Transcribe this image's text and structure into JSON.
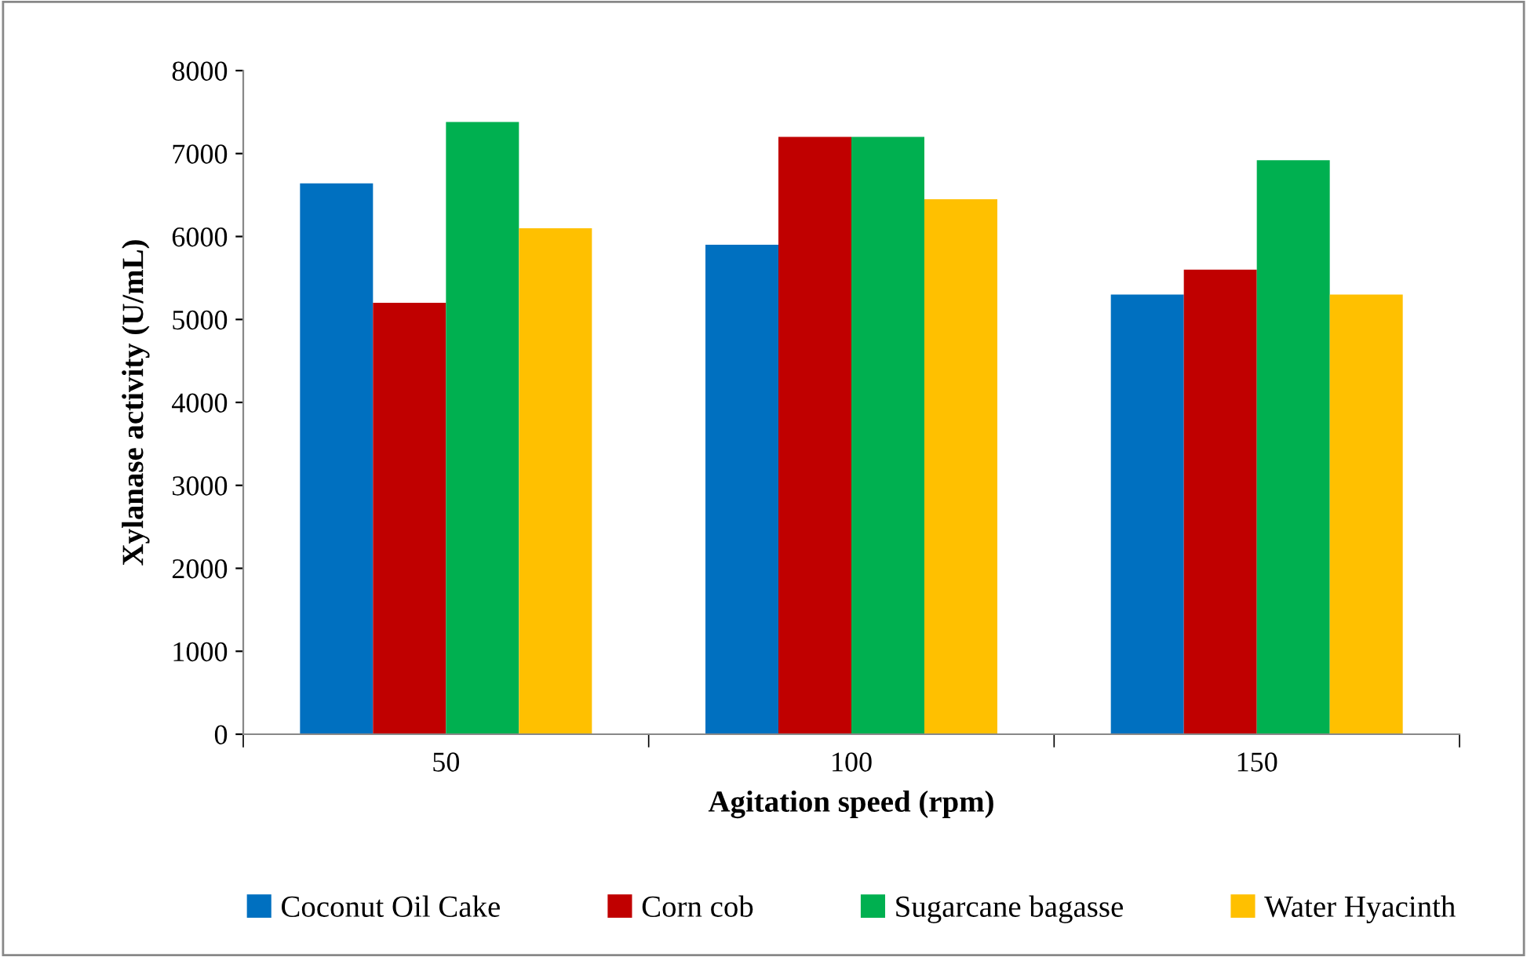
{
  "chart_data": {
    "type": "bar",
    "xlabel": "Agitation speed (rpm)",
    "ylabel": "Xylanase activity (U/mL)",
    "categories": [
      "50",
      "100",
      "150"
    ],
    "series": [
      {
        "name": "Coconut Oil Cake",
        "color": "#0070c0",
        "values": [
          6640,
          5900,
          5300
        ]
      },
      {
        "name": "Corn cob",
        "color": "#c00000",
        "values": [
          5200,
          7200,
          5600
        ]
      },
      {
        "name": "Sugarcane bagasse",
        "color": "#00b050",
        "values": [
          7380,
          7200,
          6920
        ]
      },
      {
        "name": "Water Hyacinth",
        "color": "#ffc000",
        "values": [
          6100,
          6450,
          5300
        ]
      }
    ],
    "ylim": [
      0,
      8000
    ],
    "yticks": [
      0,
      1000,
      2000,
      3000,
      4000,
      5000,
      6000,
      7000,
      8000
    ],
    "grid": false,
    "legend": "bottom"
  }
}
